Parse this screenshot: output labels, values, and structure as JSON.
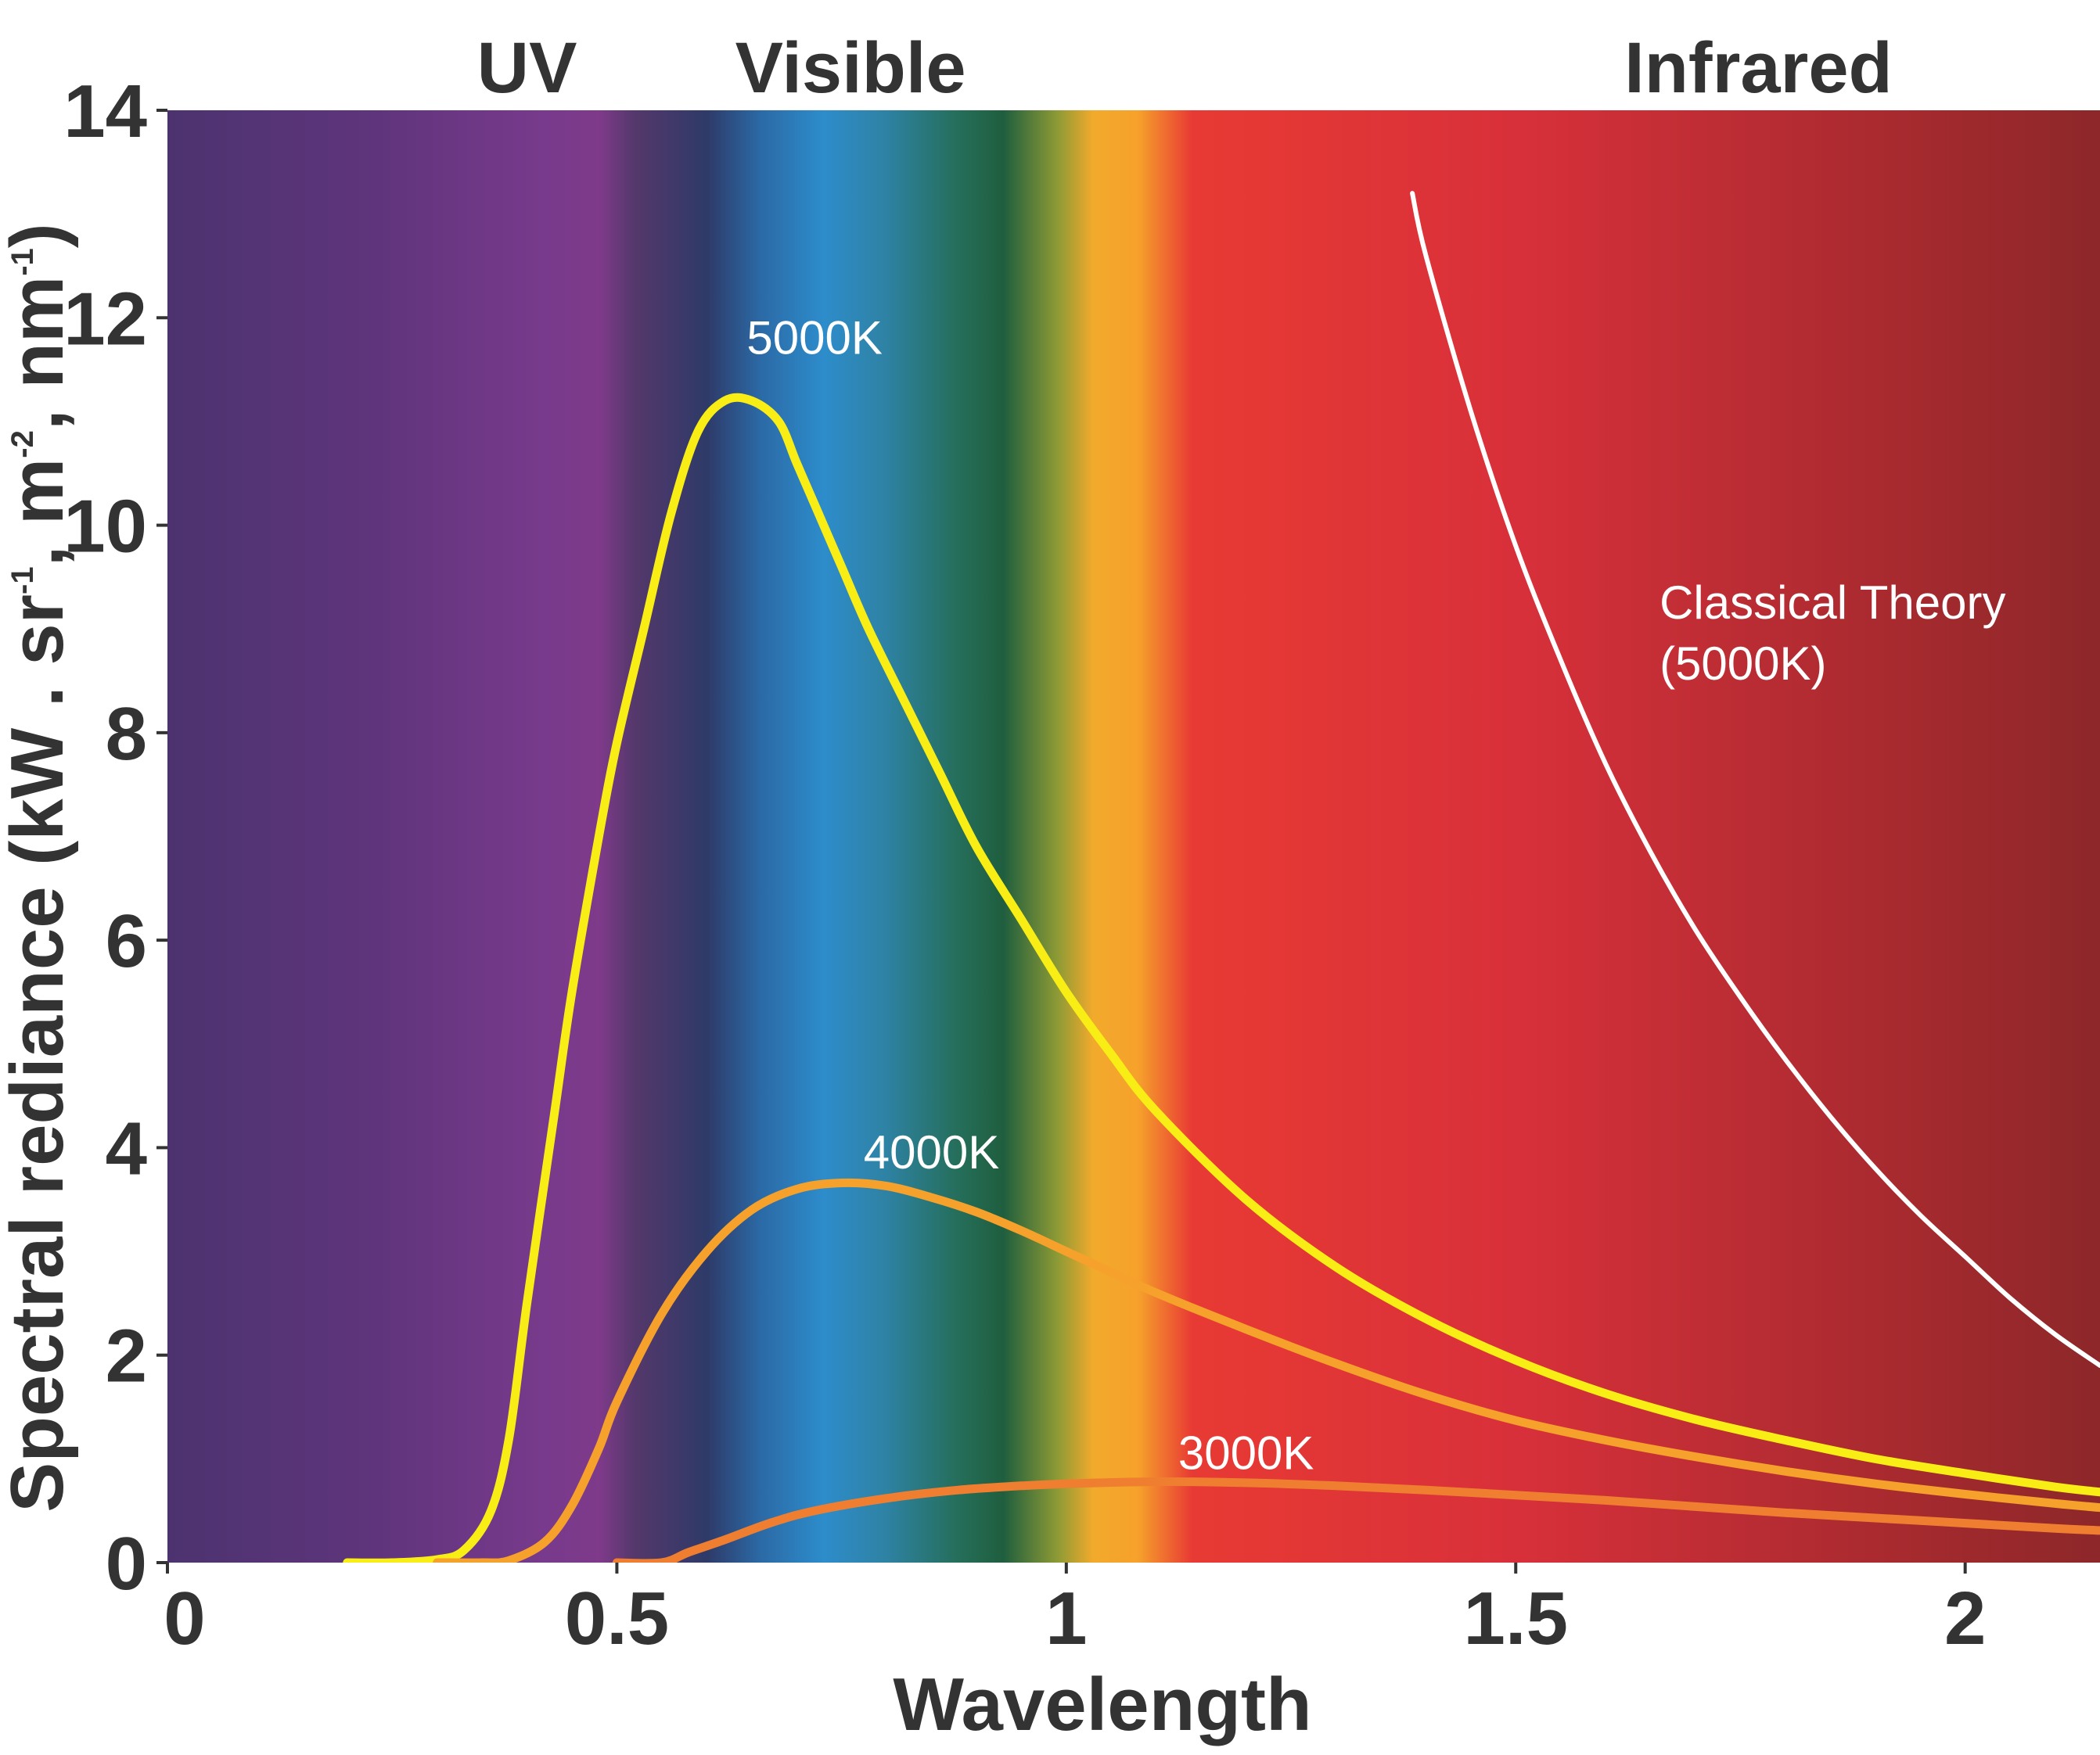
{
  "chart_data": {
    "type": "line",
    "title": "",
    "xlabel": "Wavelength",
    "ylabel": {
      "parts": [
        "Spectral rediance (kW . sr",
        "-1",
        ", m",
        "-2",
        ", nm",
        "-1",
        ")"
      ]
    },
    "xlim": [
      0,
      2.15
    ],
    "ylim": [
      0,
      14
    ],
    "x_ticks": [
      "0",
      "0.5",
      "1",
      "1.5",
      "2"
    ],
    "x_tick_values": [
      0,
      0.5,
      1,
      1.5,
      2
    ],
    "y_ticks": [
      "0",
      "2",
      "4",
      "6",
      "8",
      "10",
      "12",
      "14"
    ],
    "y_tick_values": [
      0,
      2,
      4,
      6,
      8,
      10,
      12,
      14
    ],
    "grid": false,
    "bands": [
      {
        "label": "UV",
        "x": 0.4
      },
      {
        "label": "Visible",
        "x": 0.76
      },
      {
        "label": "Infrared",
        "x": 1.77
      }
    ],
    "spectrum_stops": [
      {
        "x": 0.0,
        "color": "#4c336f"
      },
      {
        "x": 0.22,
        "color": "#5e347b"
      },
      {
        "x": 0.42,
        "color": "#783a8c"
      },
      {
        "x": 0.48,
        "color": "#7f3a8a"
      },
      {
        "x": 0.52,
        "color": "#54386b"
      },
      {
        "x": 0.6,
        "color": "#2e3a68"
      },
      {
        "x": 0.66,
        "color": "#2b6aa6"
      },
      {
        "x": 0.73,
        "color": "#2d8ccb"
      },
      {
        "x": 0.8,
        "color": "#2e82a3"
      },
      {
        "x": 0.88,
        "color": "#256e5a"
      },
      {
        "x": 0.93,
        "color": "#1f5e3e"
      },
      {
        "x": 0.99,
        "color": "#8d9a35"
      },
      {
        "x": 1.03,
        "color": "#f2aa2c"
      },
      {
        "x": 1.08,
        "color": "#f6a12b"
      },
      {
        "x": 1.14,
        "color": "#e83a34"
      },
      {
        "x": 1.5,
        "color": "#d8303a"
      },
      {
        "x": 2.15,
        "color": "#8d2729"
      }
    ],
    "series": [
      {
        "name": "5000K",
        "color": "#f8ee16",
        "label_at": [
          0.72,
          11.65
        ],
        "x": [
          0.2,
          0.25,
          0.3,
          0.33,
          0.36,
          0.38,
          0.4,
          0.43,
          0.45,
          0.48,
          0.5,
          0.53,
          0.56,
          0.59,
          0.62,
          0.65,
          0.68,
          0.7,
          0.72,
          0.75,
          0.78,
          0.82,
          0.86,
          0.9,
          0.95,
          1.0,
          1.05,
          1.1,
          1.2,
          1.3,
          1.4,
          1.5,
          1.6,
          1.7,
          1.8,
          1.9,
          2.0,
          2.1,
          2.15
        ],
        "y": [
          0,
          0,
          0.03,
          0.12,
          0.5,
          1.2,
          2.5,
          4.3,
          5.5,
          7.0,
          7.9,
          9.0,
          10.1,
          10.9,
          11.2,
          11.2,
          11.0,
          10.6,
          10.2,
          9.6,
          9.0,
          8.3,
          7.6,
          6.9,
          6.2,
          5.5,
          4.9,
          4.35,
          3.5,
          2.85,
          2.35,
          1.95,
          1.63,
          1.38,
          1.18,
          1.0,
          0.86,
          0.73,
          0.68
        ]
      },
      {
        "name": "4000K",
        "color": "#f6a12b",
        "label_at": [
          0.85,
          3.8
        ],
        "x": [
          0.3,
          0.35,
          0.38,
          0.42,
          0.45,
          0.48,
          0.5,
          0.55,
          0.6,
          0.65,
          0.7,
          0.75,
          0.8,
          0.85,
          0.9,
          0.95,
          1.0,
          1.05,
          1.1,
          1.2,
          1.3,
          1.4,
          1.5,
          1.6,
          1.7,
          1.8,
          1.9,
          2.0,
          2.1,
          2.15
        ],
        "y": [
          0,
          0,
          0.02,
          0.2,
          0.55,
          1.1,
          1.55,
          2.4,
          3.0,
          3.4,
          3.6,
          3.66,
          3.63,
          3.52,
          3.38,
          3.2,
          3.0,
          2.8,
          2.6,
          2.25,
          1.92,
          1.62,
          1.37,
          1.18,
          1.02,
          0.88,
          0.76,
          0.66,
          0.57,
          0.53
        ]
      },
      {
        "name": "3000K",
        "color": "#f07e30",
        "label_at": [
          1.2,
          0.9
        ],
        "x": [
          0.5,
          0.55,
          0.58,
          0.62,
          0.67,
          0.72,
          0.8,
          0.88,
          0.95,
          1.0,
          1.1,
          1.2,
          1.3,
          1.4,
          1.5,
          1.6,
          1.7,
          1.8,
          1.9,
          2.0,
          2.1,
          2.15
        ],
        "y": [
          0,
          0,
          0.1,
          0.22,
          0.38,
          0.5,
          0.62,
          0.7,
          0.74,
          0.76,
          0.78,
          0.77,
          0.74,
          0.7,
          0.65,
          0.6,
          0.54,
          0.48,
          0.43,
          0.38,
          0.33,
          0.31
        ]
      },
      {
        "name": "Classical Theory (5000K)",
        "label_lines": [
          "Classical Theory",
          "(5000K)"
        ],
        "color": "#ffffff",
        "label_at": [
          1.66,
          9.1
        ],
        "x": [
          1.385,
          1.4,
          1.45,
          1.5,
          1.55,
          1.6,
          1.65,
          1.7,
          1.75,
          1.8,
          1.85,
          1.9,
          1.95,
          2.0,
          2.05,
          2.1,
          2.15
        ],
        "y": [
          13.2,
          12.6,
          11.1,
          9.8,
          8.7,
          7.7,
          6.85,
          6.1,
          5.45,
          4.85,
          4.3,
          3.8,
          3.35,
          2.95,
          2.55,
          2.2,
          1.9
        ]
      }
    ]
  }
}
